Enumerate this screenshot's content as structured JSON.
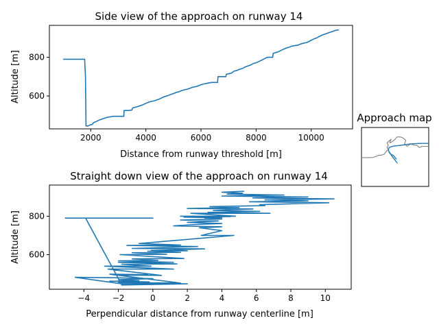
{
  "chart_data": [
    {
      "type": "line",
      "title": "Side view of the approach on runway 14",
      "xlabel": "Distance from runway threshold [m]",
      "ylabel": "Altitude [m]",
      "xlim": [
        500,
        11500
      ],
      "ylim": [
        430,
        965
      ],
      "xticks": [
        2000,
        4000,
        6000,
        8000,
        10000
      ],
      "yticks": [
        600,
        800
      ],
      "grid": false,
      "color": "#1f77b4",
      "x": [
        1000,
        1780,
        1810,
        1830,
        1900,
        2000,
        2050,
        2100,
        2200,
        2300,
        2400,
        2500,
        2600,
        2700,
        2800,
        2900,
        3000,
        3100,
        3200,
        3210,
        3400,
        3500,
        3520,
        3700,
        3800,
        3900,
        4000,
        4100,
        4200,
        4300,
        4400,
        4500,
        4600,
        4700,
        4800,
        4900,
        5000,
        5100,
        5200,
        5300,
        5400,
        5500,
        5600,
        5700,
        5800,
        5900,
        6000,
        6100,
        6200,
        6300,
        6400,
        6600,
        6620,
        6900,
        6920,
        7100,
        7200,
        7300,
        7400,
        7500,
        7600,
        7700,
        7800,
        7900,
        8000,
        8100,
        8200,
        8300,
        8400,
        8600,
        8620,
        8800,
        8900,
        9000,
        9100,
        9200,
        9300,
        9400,
        9500,
        9600,
        9700,
        9800,
        9900,
        10000,
        10100,
        10200,
        10300,
        10400,
        10500,
        10600,
        10700,
        10800,
        10900,
        11000
      ],
      "y": [
        790,
        790,
        700,
        445,
        445,
        452,
        452,
        462,
        468,
        475,
        480,
        485,
        490,
        492,
        495,
        495,
        495,
        495,
        495,
        525,
        525,
        528,
        538,
        545,
        550,
        555,
        562,
        568,
        572,
        575,
        580,
        585,
        592,
        598,
        602,
        608,
        612,
        618,
        622,
        628,
        632,
        635,
        640,
        645,
        648,
        652,
        658,
        662,
        665,
        668,
        670,
        670,
        700,
        700,
        712,
        718,
        728,
        732,
        738,
        742,
        750,
        755,
        760,
        768,
        772,
        778,
        785,
        792,
        800,
        800,
        820,
        828,
        835,
        842,
        848,
        852,
        858,
        860,
        862,
        868,
        872,
        875,
        880,
        888,
        895,
        900,
        908,
        915,
        920,
        925,
        930,
        935,
        940,
        942
      ]
    },
    {
      "type": "line",
      "title": "Straight down view of the approach on runway 14",
      "xlabel": "Perpendicular distance from runway centerline [m]",
      "ylabel": "Altitude [m]",
      "xlim": [
        -6.0,
        11.5
      ],
      "ylim": [
        420,
        962
      ],
      "xticks": [
        -4,
        -2,
        0,
        2,
        4,
        6,
        8,
        10
      ],
      "yticks": [
        600,
        800
      ],
      "grid": false,
      "color": "#1f77b4",
      "x": [
        -5.1,
        0.0,
        -3.9,
        -1.8,
        2.0,
        -1.8,
        -4.5,
        -2.3,
        0.0,
        -2.0,
        -0.8,
        -2.5,
        -0.2,
        -2.0,
        1.6,
        -2.5,
        -0.3,
        -2.2,
        0.5,
        -2.6,
        1.2,
        -2.8,
        -0.1,
        -1.8,
        1.4,
        -2.0,
        1.2,
        -2.0,
        0.3,
        -1.2,
        1.8,
        -1.9,
        0.8,
        -1.2,
        1.6,
        -0.3,
        2.0,
        -0.1,
        3.0,
        -1.2,
        2.6,
        -1.5,
        1.6,
        -0.8,
        4.7,
        2.8,
        4.0,
        2.7,
        4.0,
        1.2,
        2.8,
        4.0,
        2.0,
        3.8,
        1.6,
        4.0,
        3.0,
        4.0,
        1.8,
        4.5,
        1.6,
        4.8,
        2.2,
        6.8,
        3.2,
        6.2,
        3.5,
        5.8,
        2.0,
        5.0,
        3.3,
        6.5,
        6.2,
        10.2,
        5.6,
        9.0,
        6.5,
        10.5,
        5.8,
        9.0,
        4.0,
        7.6,
        4.3,
        5.2,
        4.0,
        5.3
      ],
      "y": [
        790,
        790,
        790,
        442,
        448,
        448,
        482,
        480,
        475,
        470,
        465,
        462,
        458,
        455,
        452,
        498,
        496,
        494,
        492,
        525,
        525,
        540,
        540,
        550,
        552,
        560,
        560,
        568,
        570,
        578,
        580,
        600,
        602,
        610,
        612,
        618,
        620,
        622,
        630,
        632,
        642,
        648,
        650,
        658,
        700,
        700,
        725,
        740,
        745,
        750,
        758,
        762,
        768,
        775,
        780,
        785,
        790,
        792,
        795,
        798,
        800,
        800,
        815,
        815,
        820,
        825,
        830,
        838,
        840,
        845,
        850,
        855,
        860,
        870,
        875,
        880,
        885,
        890,
        895,
        900,
        905,
        910,
        915,
        920,
        925,
        930
      ]
    },
    {
      "type": "line",
      "title": "Approach map",
      "series": [
        {
          "color": "#808080",
          "x": [
            0.0,
            0.08,
            0.16,
            0.22,
            0.26,
            0.3,
            0.34,
            0.37,
            0.4,
            0.38,
            0.4,
            0.38,
            0.42,
            0.44,
            0.42,
            0.46,
            0.5,
            0.53,
            0.58,
            0.62,
            0.66,
            0.64,
            0.68,
            0.7,
            0.74,
            0.78,
            0.82,
            0.86,
            0.9,
            0.94,
            1.0
          ],
          "y": [
            0.49,
            0.49,
            0.49,
            0.51,
            0.53,
            0.53,
            0.55,
            0.6,
            0.62,
            0.66,
            0.7,
            0.74,
            0.78,
            0.8,
            0.74,
            0.76,
            0.8,
            0.84,
            0.84,
            0.82,
            0.78,
            0.72,
            0.68,
            0.7,
            0.72,
            0.7,
            0.7,
            0.66,
            0.68,
            0.68,
            0.68
          ]
        },
        {
          "color": "#1f77b4",
          "x": [
            0.52,
            0.48,
            0.42,
            0.4,
            0.41,
            0.46,
            0.52,
            0.6,
            0.72,
            0.86,
            1.0
          ],
          "y": [
            0.46,
            0.52,
            0.56,
            0.62,
            0.66,
            0.68,
            0.69,
            0.7,
            0.72,
            0.73,
            0.73
          ]
        },
        {
          "color": "#1f77b4",
          "x": [
            0.41,
            0.45,
            0.49,
            0.53
          ],
          "y": [
            0.59,
            0.52,
            0.46,
            0.4
          ]
        },
        {
          "color": "#a0a0a0",
          "x": [
            0.53,
            0.54
          ],
          "y": [
            0.4,
            0.39
          ]
        }
      ]
    }
  ]
}
